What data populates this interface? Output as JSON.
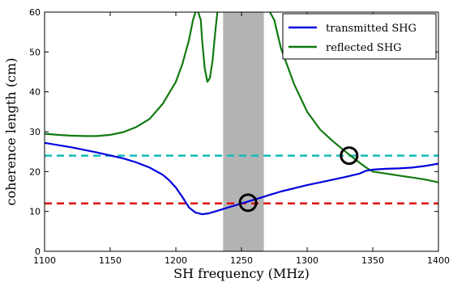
{
  "chart_data": {
    "type": "line",
    "xlabel": "SH frequency (MHz)",
    "ylabel": "coherence length (cm)",
    "xlim": [
      1100,
      1400
    ],
    "ylim": [
      0,
      60
    ],
    "x_ticks": [
      "1100",
      "1150",
      "1200",
      "1250",
      "1300",
      "1350",
      "1400"
    ],
    "y_ticks": [
      "0",
      "10",
      "20",
      "30",
      "40",
      "50",
      "60"
    ],
    "legend_position": "top-right",
    "series": [
      {
        "name": "transmitted SHG",
        "color": "#0000dd",
        "x": [
          1100,
          1120,
          1140,
          1160,
          1170,
          1180,
          1190,
          1195,
          1200,
          1205,
          1210,
          1215,
          1220,
          1225,
          1230,
          1240,
          1250,
          1260,
          1270,
          1280,
          1290,
          1300,
          1310,
          1320,
          1330,
          1340,
          1345,
          1350,
          1360,
          1370,
          1380,
          1390,
          1400
        ],
        "y": [
          27.2,
          26.1,
          24.8,
          23.3,
          22.3,
          21.0,
          19.2,
          17.8,
          16.0,
          13.6,
          11.0,
          9.7,
          9.3,
          9.5,
          10.0,
          11.0,
          12.0,
          13.0,
          14.0,
          15.0,
          15.8,
          16.6,
          17.3,
          18.0,
          18.7,
          19.5,
          20.2,
          20.5,
          20.7,
          20.8,
          21.0,
          21.4,
          22.0
        ]
      },
      {
        "name": "reflected SHG",
        "color": "#117a11",
        "x": [
          1100,
          1110,
          1120,
          1130,
          1140,
          1150,
          1160,
          1170,
          1180,
          1190,
          1200,
          1205,
          1210,
          1213,
          1216,
          1219,
          1220,
          1222,
          1224,
          1226,
          1228,
          1230,
          1232,
          1234,
          1236,
          1238,
          1240,
          1250,
          1255,
          1260,
          1265,
          1270,
          1275,
          1280,
          1290,
          1300,
          1310,
          1320,
          1330,
          1340,
          1345,
          1350,
          1360,
          1370,
          1380,
          1390,
          1400
        ],
        "y": [
          29.5,
          29.2,
          29.0,
          28.9,
          28.9,
          29.2,
          29.9,
          31.2,
          33.2,
          37.0,
          42.5,
          47.0,
          53.0,
          58.0,
          61.0,
          58.0,
          53.0,
          46.0,
          42.5,
          43.5,
          48.0,
          55.0,
          61.0,
          61.0,
          61.0,
          61.0,
          61.0,
          61.0,
          61.0,
          61.0,
          61.0,
          61.0,
          58.0,
          51.0,
          42.0,
          35.0,
          30.5,
          27.5,
          24.8,
          22.2,
          21.0,
          20.0,
          19.5,
          19.0,
          18.5,
          18.0,
          17.3
        ]
      }
    ],
    "reference_lines": [
      {
        "y": 24,
        "color": "#11bbbb",
        "style": "dashed"
      },
      {
        "y": 12,
        "color": "#dd1111",
        "style": "dashed"
      }
    ],
    "shaded_band": {
      "x_start": 1236,
      "x_end": 1267,
      "color": "#b3b3b3"
    },
    "markers": [
      {
        "x": 1255,
        "y": 12.2,
        "shape": "circle"
      },
      {
        "x": 1332,
        "y": 24.0,
        "shape": "circle"
      }
    ]
  }
}
